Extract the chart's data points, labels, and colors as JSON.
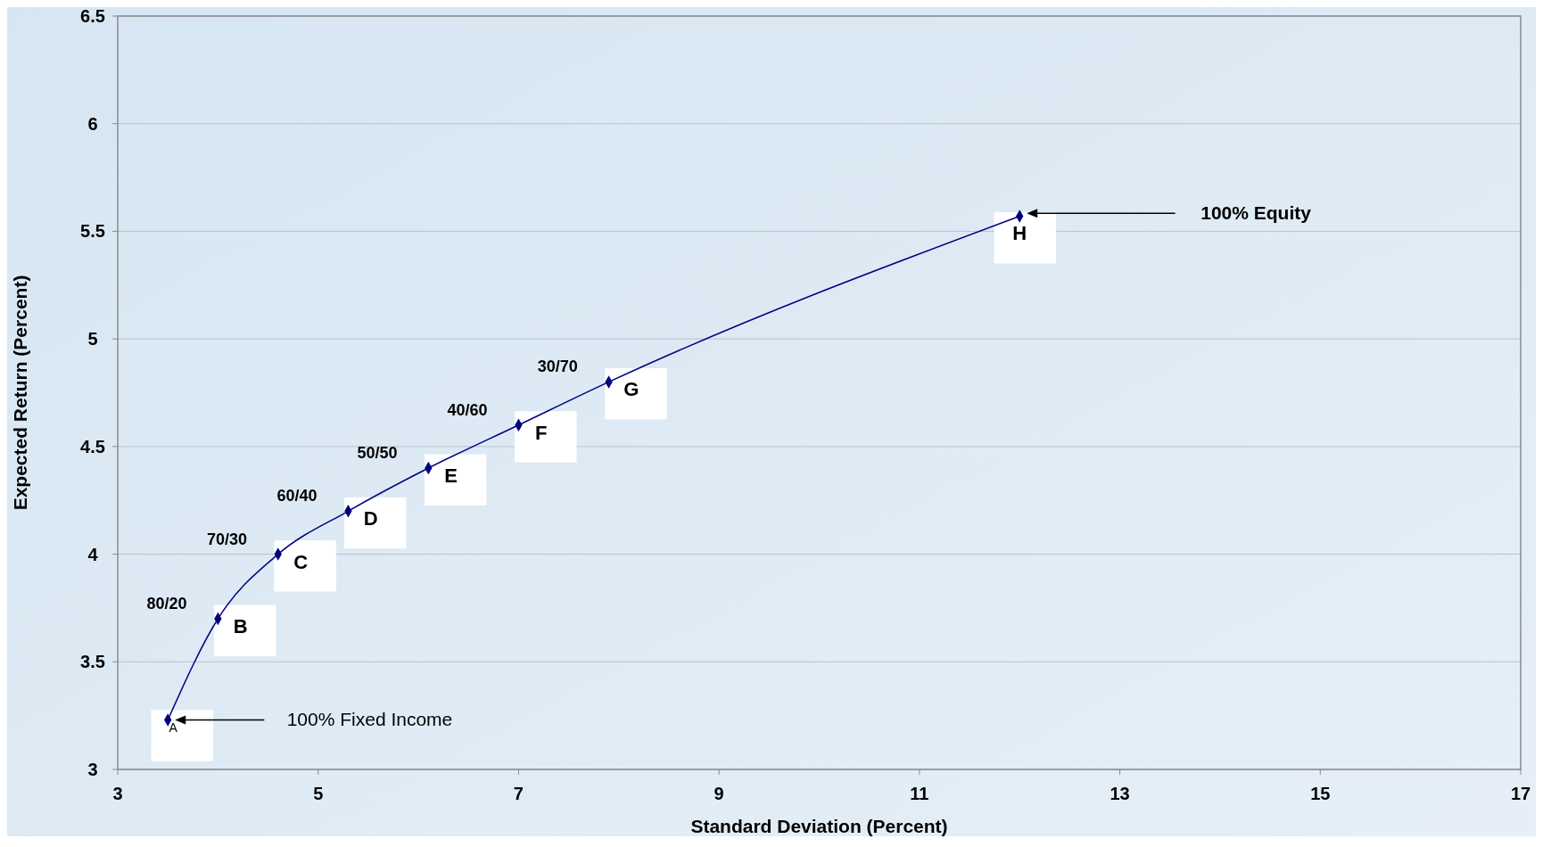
{
  "chart_data": {
    "type": "line",
    "xlabel": "Standard Deviation (Percent)",
    "ylabel": "Expected Return (Percent)",
    "x": [
      3.5,
      4.0,
      4.6,
      5.3,
      6.1,
      7.0,
      7.9,
      12.0
    ],
    "values": [
      3.23,
      3.7,
      4.0,
      4.2,
      4.4,
      4.6,
      4.8,
      5.57
    ],
    "color": "#000080",
    "marker": "diamond",
    "line_style": "solid",
    "grid": "y",
    "xlim": [
      3,
      17
    ],
    "xticks": [
      3,
      5,
      7,
      9,
      11,
      13,
      15,
      17
    ],
    "ylim": [
      3,
      6.5
    ],
    "yticks": [
      3,
      3.5,
      4,
      4.5,
      5,
      5.5,
      6,
      6.5
    ],
    "annotations": [
      {
        "text": "A",
        "x": 3.5,
        "y": 3.23
      },
      {
        "text": "B",
        "x": 4.0,
        "y": 3.7
      },
      {
        "text": "C",
        "x": 4.6,
        "y": 4.0
      },
      {
        "text": "D",
        "x": 5.3,
        "y": 4.2
      },
      {
        "text": "E",
        "x": 6.1,
        "y": 4.4
      },
      {
        "text": "F",
        "x": 7.0,
        "y": 4.6
      },
      {
        "text": "G",
        "x": 7.9,
        "y": 4.8
      },
      {
        "text": "H",
        "x": 12.0,
        "y": 5.57
      },
      {
        "text": "80/20",
        "x": 4.0,
        "y": 3.7
      },
      {
        "text": "70/30",
        "x": 4.6,
        "y": 4.0
      },
      {
        "text": "60/40",
        "x": 5.3,
        "y": 4.2
      },
      {
        "text": "50/50",
        "x": 6.1,
        "y": 4.4
      },
      {
        "text": "40/60",
        "x": 7.0,
        "y": 4.6
      },
      {
        "text": "30/70",
        "x": 7.9,
        "y": 4.8
      },
      "100% Fixed Income",
      "100% Equity"
    ]
  }
}
